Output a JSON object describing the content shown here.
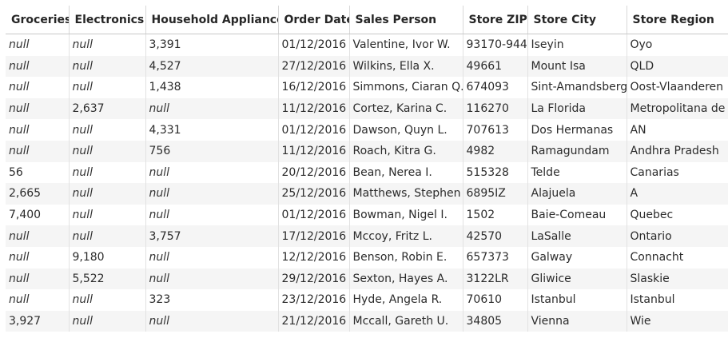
{
  "table": {
    "columns": [
      "Groceries",
      "Electronics",
      "Household Appliances",
      "Order Date",
      "Sales Person",
      "Store ZIP",
      "Store City",
      "Store Region"
    ],
    "rows": [
      [
        "null",
        "null",
        "3,391",
        "01/12/2016",
        "Valentine, Ivor W.",
        "93170-944",
        "Iseyin",
        "Oyo"
      ],
      [
        "null",
        "null",
        "4,527",
        "27/12/2016",
        "Wilkins, Ella X.",
        "49661",
        "Mount Isa",
        "QLD"
      ],
      [
        "null",
        "null",
        "1,438",
        "16/12/2016",
        "Simmons, Ciaran Q.",
        "674093",
        "Sint-Amandsberg",
        "Oost-Vlaanderen"
      ],
      [
        "null",
        "2,637",
        "null",
        "11/12/2016",
        "Cortez, Karina C.",
        "116270",
        "La Florida",
        "Metropolitana de"
      ],
      [
        "null",
        "null",
        "4,331",
        "01/12/2016",
        "Dawson, Quyn L.",
        "707613",
        "Dos Hermanas",
        "AN"
      ],
      [
        "null",
        "null",
        "756",
        "11/12/2016",
        "Roach, Kitra G.",
        "4982",
        "Ramagundam",
        "Andhra Pradesh"
      ],
      [
        "56",
        "null",
        "null",
        "20/12/2016",
        "Bean, Nerea I.",
        "515328",
        "Telde",
        "Canarias"
      ],
      [
        "2,665",
        "null",
        "null",
        "25/12/2016",
        "Matthews, Stephen F",
        "6895IZ",
        "Alajuela",
        "A"
      ],
      [
        "7,400",
        "null",
        "null",
        "01/12/2016",
        "Bowman, Nigel I.",
        "1502",
        "Baie-Comeau",
        "Quebec"
      ],
      [
        "null",
        "null",
        "3,757",
        "17/12/2016",
        "Mccoy, Fritz L.",
        "42570",
        "LaSalle",
        "Ontario"
      ],
      [
        "null",
        "9,180",
        "null",
        "12/12/2016",
        "Benson, Robin E.",
        "657373",
        "Galway",
        "Connacht"
      ],
      [
        "null",
        "5,522",
        "null",
        "29/12/2016",
        "Sexton, Hayes A.",
        "3122LR",
        "Gliwice",
        "Slaskie"
      ],
      [
        "null",
        "null",
        "323",
        "23/12/2016",
        "Hyde, Angela R.",
        "70610",
        "Istanbul",
        "Istanbul"
      ],
      [
        "3,927",
        "null",
        "null",
        "21/12/2016",
        "Mccall, Gareth U.",
        "34805",
        "Vienna",
        "Wie"
      ]
    ]
  }
}
